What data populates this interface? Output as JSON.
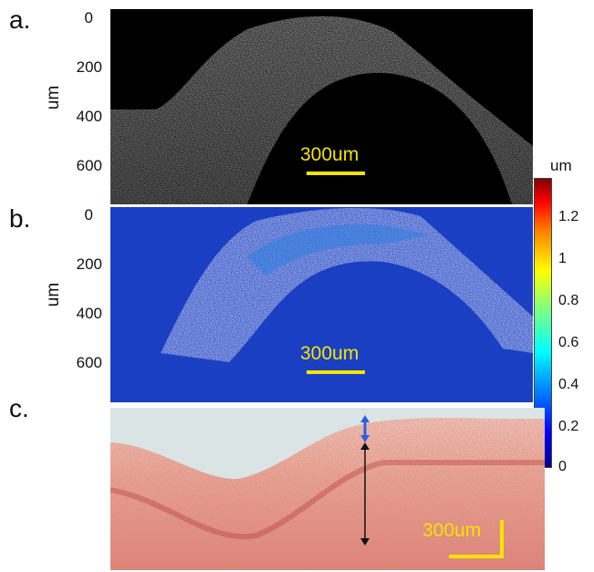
{
  "panels": {
    "a": {
      "letter": "a.",
      "y_unit": "um",
      "y_ticks": [
        "0",
        "200",
        "400",
        "600"
      ],
      "scalebar": "300um"
    },
    "b": {
      "letter": "b.",
      "y_unit": "um",
      "y_ticks": [
        "0",
        "200",
        "400",
        "600"
      ],
      "scalebar": "300um"
    },
    "c": {
      "letter": "c.",
      "scalebar": "300um"
    }
  },
  "colorbar": {
    "unit": "um",
    "ticks": [
      "1.2",
      "1",
      "0.8",
      "0.6",
      "0.4",
      "0.2",
      "0"
    ]
  },
  "colors": {
    "scalebar": "#f5e400",
    "arrow_blue": "#2b5fe0",
    "arrow_black": "#111111"
  }
}
